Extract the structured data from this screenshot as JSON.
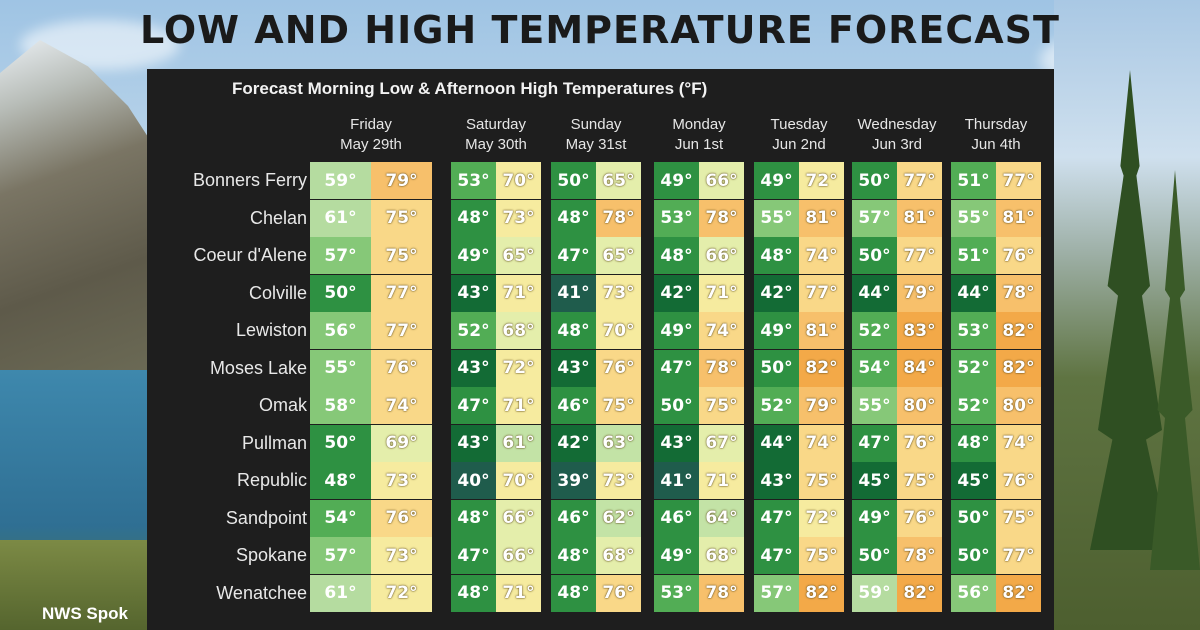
{
  "page": {
    "title": "LOW AND HIGH TEMPERATURE FORECAST",
    "footer": "NWS Spok"
  },
  "chart_data": {
    "type": "table",
    "title": "Forecast Morning Low & Afternoon High Temperatures (°F)",
    "days": [
      {
        "day": "Friday",
        "date": "May 29th"
      },
      {
        "day": "Saturday",
        "date": "May 30th"
      },
      {
        "day": "Sunday",
        "date": "May 31st"
      },
      {
        "day": "Monday",
        "date": "Jun 1st"
      },
      {
        "day": "Tuesday",
        "date": "Jun 2nd"
      },
      {
        "day": "Wednesday",
        "date": "Jun 3rd"
      },
      {
        "day": "Thursday",
        "date": "Jun 4th"
      }
    ],
    "rows": [
      {
        "city": "Bonners Ferry",
        "lows": [
          59,
          53,
          50,
          49,
          49,
          50,
          51
        ],
        "highs": [
          79,
          70,
          65,
          66,
          72,
          77,
          77
        ]
      },
      {
        "city": "Chelan",
        "lows": [
          61,
          48,
          48,
          53,
          55,
          57,
          55
        ],
        "highs": [
          75,
          73,
          78,
          78,
          81,
          81,
          81
        ]
      },
      {
        "city": "Coeur d'Alene",
        "lows": [
          57,
          49,
          47,
          48,
          48,
          50,
          51
        ],
        "highs": [
          75,
          65,
          65,
          66,
          74,
          77,
          76
        ]
      },
      {
        "city": "Colville",
        "lows": [
          50,
          43,
          41,
          42,
          42,
          44,
          44
        ],
        "highs": [
          77,
          71,
          73,
          71,
          77,
          79,
          78
        ]
      },
      {
        "city": "Lewiston",
        "lows": [
          56,
          52,
          48,
          49,
          49,
          52,
          53
        ],
        "highs": [
          77,
          68,
          70,
          74,
          81,
          83,
          82
        ]
      },
      {
        "city": "Moses Lake",
        "lows": [
          55,
          43,
          43,
          47,
          50,
          54,
          52
        ],
        "highs": [
          76,
          72,
          76,
          78,
          82,
          84,
          82
        ]
      },
      {
        "city": "Omak",
        "lows": [
          58,
          47,
          46,
          50,
          52,
          55,
          52
        ],
        "highs": [
          74,
          71,
          75,
          75,
          79,
          80,
          80
        ]
      },
      {
        "city": "Pullman",
        "lows": [
          50,
          43,
          42,
          43,
          44,
          47,
          48
        ],
        "highs": [
          69,
          61,
          63,
          67,
          74,
          76,
          74
        ]
      },
      {
        "city": "Republic",
        "lows": [
          48,
          40,
          39,
          41,
          43,
          45,
          45
        ],
        "highs": [
          73,
          70,
          73,
          71,
          75,
          75,
          76
        ]
      },
      {
        "city": "Sandpoint",
        "lows": [
          54,
          48,
          46,
          46,
          47,
          49,
          50
        ],
        "highs": [
          76,
          66,
          62,
          64,
          72,
          76,
          75
        ]
      },
      {
        "city": "Spokane",
        "lows": [
          57,
          47,
          48,
          49,
          47,
          50,
          50
        ],
        "highs": [
          73,
          66,
          68,
          68,
          75,
          78,
          77
        ]
      },
      {
        "city": "Wenatchee",
        "lows": [
          61,
          48,
          48,
          53,
          57,
          59,
          56
        ],
        "highs": [
          72,
          71,
          76,
          78,
          82,
          82,
          82
        ]
      }
    ],
    "unit_suffix": "°",
    "colors": {
      "panel_bg": "#1e1e1e",
      "low_scale": [
        "#1f5c4c",
        "#136b35",
        "#2e9142",
        "#52ad55",
        "#86c878",
        "#b5dca0"
      ],
      "high_scale": [
        "#c3e3a6",
        "#e4eeab",
        "#f6eb9f",
        "#f9d888",
        "#f7c06b",
        "#f3a948"
      ]
    }
  }
}
